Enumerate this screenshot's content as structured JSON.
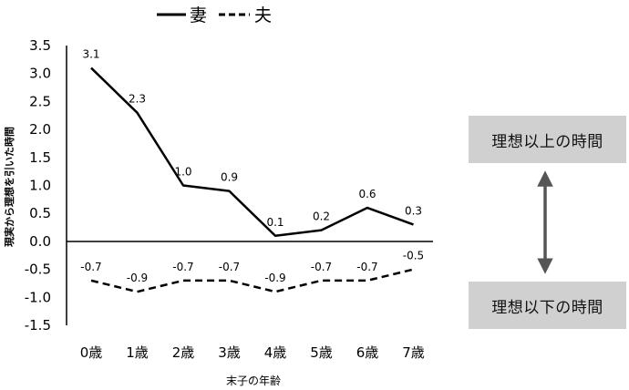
{
  "legend": {
    "wife_label": "妻",
    "husband_label": "夫"
  },
  "chart_data": {
    "type": "line",
    "categories": [
      "0歳",
      "1歳",
      "2歳",
      "3歳",
      "4歳",
      "5歳",
      "6歳",
      "7歳"
    ],
    "series": [
      {
        "name": "妻",
        "values": [
          3.1,
          2.3,
          1.0,
          0.9,
          0.1,
          0.2,
          0.6,
          0.3
        ],
        "style": "solid"
      },
      {
        "name": "夫",
        "values": [
          -0.7,
          -0.9,
          -0.7,
          -0.7,
          -0.9,
          -0.7,
          -0.7,
          -0.5
        ],
        "style": "dashed"
      }
    ],
    "xlabel": "末子の年齢",
    "ylabel": "現実から理想を引いた時間",
    "ylim": [
      -1.5,
      3.5
    ],
    "yticks": [
      "3.5",
      "3.0",
      "2.5",
      "2.0",
      "1.5",
      "1.0",
      "0.5",
      "0.0",
      "-0.5",
      "-1.0",
      "-1.5"
    ],
    "grid": false,
    "legend_position": "top"
  },
  "annotations": {
    "upper_box": "理想以上の時間",
    "lower_box": "理想以下の時間"
  }
}
